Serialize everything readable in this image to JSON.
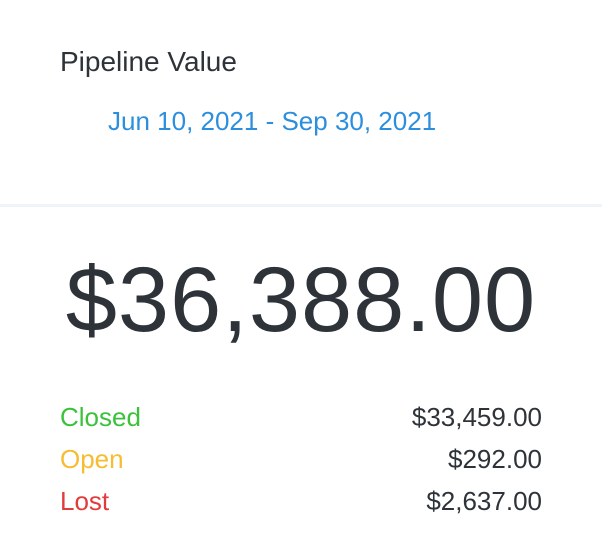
{
  "card": {
    "title": "Pipeline Value",
    "date_range": "Jun 10, 2021 - Sep 30, 2021",
    "total": "$36,388.00",
    "breakdown": [
      {
        "label": "Closed",
        "value": "$33,459.00",
        "color": "#3cc13b"
      },
      {
        "label": "Open",
        "value": "$292.00",
        "color": "#f5bd2f"
      },
      {
        "label": "Lost",
        "value": "$2,637.00",
        "color": "#e03c3c"
      }
    ]
  }
}
